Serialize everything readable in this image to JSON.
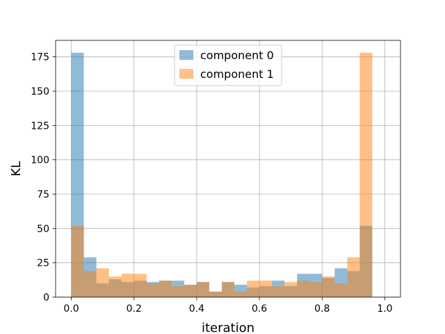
{
  "chart_data": {
    "type": "bar",
    "subtype": "histogram",
    "title": "",
    "xlabel": "iteration",
    "ylabel": "KL",
    "xlim": [
      -0.05,
      1.05
    ],
    "ylim": [
      0,
      187
    ],
    "xticks": [
      0.0,
      0.2,
      0.4,
      0.6,
      0.8,
      1.0
    ],
    "xtick_labels": [
      "0.0",
      "0.2",
      "0.4",
      "0.6",
      "0.8",
      "1.0"
    ],
    "yticks": [
      0,
      25,
      50,
      75,
      100,
      125,
      150,
      175
    ],
    "ytick_labels": [
      "0",
      "25",
      "50",
      "75",
      "100",
      "125",
      "150",
      "175"
    ],
    "grid": true,
    "legend": {
      "position": "upper center"
    },
    "bins": 25,
    "bin_range": [
      0.0,
      1.0
    ],
    "series": [
      {
        "name": "component 0",
        "color": "#1f77b4",
        "alpha": 0.5,
        "values": [
          178,
          29,
          10,
          13,
          11,
          12,
          11,
          12,
          12,
          9,
          11,
          4,
          11,
          9,
          7,
          8,
          12,
          8,
          17,
          17,
          14,
          21,
          19,
          52,
          0
        ]
      },
      {
        "name": "component 1",
        "color": "#ff7f0e",
        "alpha": 0.5,
        "values": [
          52,
          19,
          21,
          15,
          17,
          17,
          10,
          12,
          8,
          9,
          11,
          4,
          11,
          4,
          12,
          12,
          8,
          11,
          12,
          11,
          15,
          10,
          29,
          178,
          0
        ]
      }
    ]
  }
}
